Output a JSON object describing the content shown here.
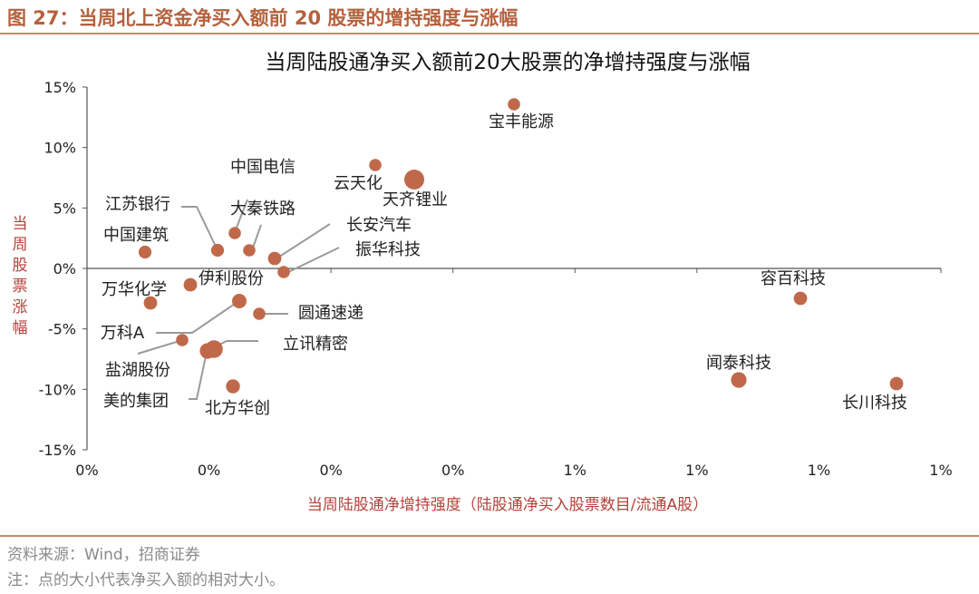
{
  "figure": {
    "title": "图 27：当周北上资金净买入额前 20 股票的增持强度与涨幅",
    "source": "资料来源：Wind，招商证券",
    "note": "注：点的大小代表净买入额的相对大小。"
  },
  "chart_data": {
    "type": "scatter",
    "title": "当周陆股通净买入额前20大股票的净增持强度与涨幅",
    "xlabel": "当周陆股通净增持强度（陆股通净买入股票数目/流通A股）",
    "ylabel": "当周股票涨幅",
    "xlim": [
      0,
      1
    ],
    "ylim": [
      -15,
      15
    ],
    "x_ticks": [
      "0%",
      "0%",
      "0%",
      "0%",
      "1%",
      "1%",
      "1%",
      "1%"
    ],
    "y_ticks": [
      "-15%",
      "-10%",
      "-5%",
      "0%",
      "5%",
      "10%",
      "15%"
    ],
    "grid": false,
    "point_color": "#c0694a",
    "points": [
      {
        "label": "宝丰能源",
        "x": 0.7,
        "y": 13.5,
        "size": 0.3
      },
      {
        "label": "中国电信",
        "x": 0.242,
        "y": 8.5,
        "size": 0.3
      },
      {
        "label": "云天化",
        "x": 0.242,
        "y": 8.5,
        "size": 0.3
      },
      {
        "label": "天齐锂业",
        "x": 0.268,
        "y": 7.3,
        "size": 1.0
      },
      {
        "label": "江苏银行",
        "x": 0.107,
        "y": 1.4,
        "size": 0.35
      },
      {
        "label": "大秦铁路",
        "x": 0.124,
        "y": 2.9,
        "size": 0.3
      },
      {
        "label": "长安汽车",
        "x": 0.155,
        "y": 0.8,
        "size": 0.4
      },
      {
        "label": "振华科技",
        "x": 0.165,
        "y": -0.3,
        "size": 0.3
      },
      {
        "label": "中国建筑",
        "x": 0.048,
        "y": 1.3,
        "size": 0.35
      },
      {
        "label": "伊利股份",
        "x": 0.085,
        "y": -1.3,
        "size": 0.4
      },
      {
        "label": "万华化学",
        "x": 0.053,
        "y": -2.9,
        "size": 0.4
      },
      {
        "label": "圆通速递",
        "x": 0.142,
        "y": -3.8,
        "size": 0.3
      },
      {
        "label": "万科A",
        "x": 0.13,
        "y": -2.7,
        "size": 0.5
      },
      {
        "label": "立讯精密",
        "x": 0.105,
        "y": -6.8,
        "size": 0.8
      },
      {
        "label": "盐湖股份",
        "x": 0.079,
        "y": -5.9,
        "size": 0.3
      },
      {
        "label": "美的集团",
        "x": 0.095,
        "y": -6.9,
        "size": 0.6
      },
      {
        "label": "北方华创",
        "x": 0.12,
        "y": -9.8,
        "size": 0.45
      },
      {
        "label": "容百科技",
        "x": 0.935,
        "y": -2.6,
        "size": 0.4
      },
      {
        "label": "闻泰科技",
        "x": 0.895,
        "y": -9.2,
        "size": 0.6
      },
      {
        "label": "长川科技",
        "x": 0.935,
        "y": -9.5,
        "size": 0.4
      }
    ]
  }
}
